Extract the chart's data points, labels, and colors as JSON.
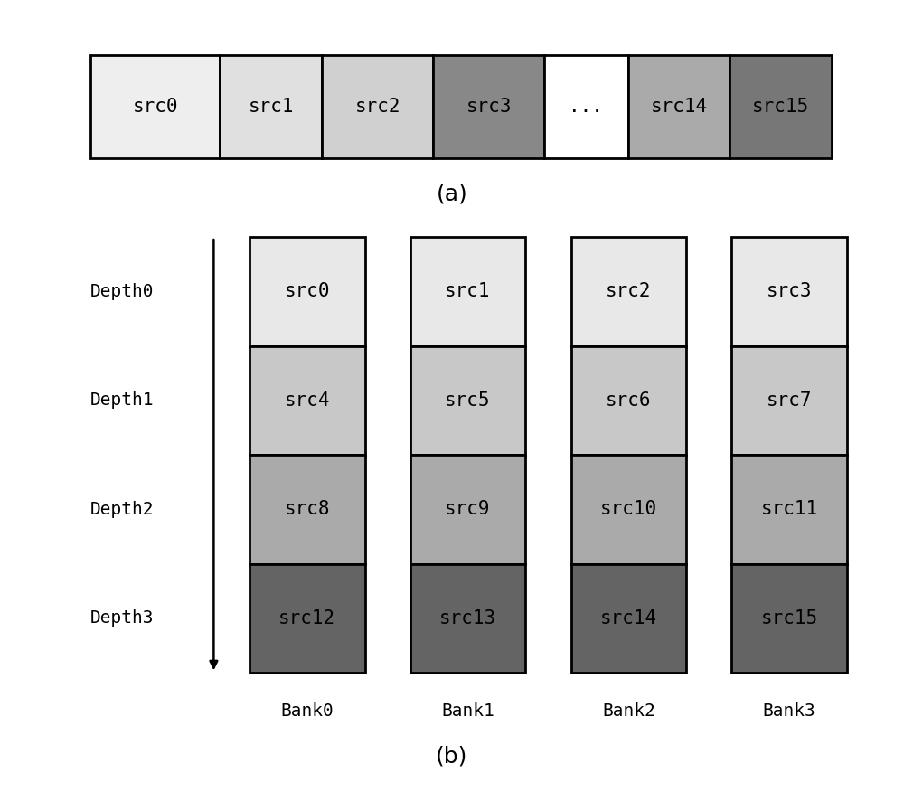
{
  "fig_width": 10.0,
  "fig_height": 8.76,
  "bg_color": "#ffffff",
  "part_a": {
    "cells": [
      "src0",
      "src1",
      "src2",
      "src3",
      "...",
      "src14",
      "src15"
    ],
    "colors": [
      "#eeeeee",
      "#e0e0e0",
      "#d0d0d0",
      "#888888",
      "#ffffff",
      "#aaaaaa",
      "#777777"
    ],
    "widths": [
      1.4,
      1.1,
      1.2,
      1.2,
      0.9,
      1.1,
      1.1
    ],
    "label": "(a)",
    "label_fontsize": 18
  },
  "part_b": {
    "banks": [
      "Bank0",
      "Bank1",
      "Bank2",
      "Bank3"
    ],
    "depths": [
      "Depth0",
      "Depth1",
      "Depth2",
      "Depth3"
    ],
    "cells": [
      [
        "src0",
        "src1",
        "src2",
        "src3"
      ],
      [
        "src4",
        "src5",
        "src6",
        "src7"
      ],
      [
        "src8",
        "src9",
        "src10",
        "src11"
      ],
      [
        "src12",
        "src13",
        "src14",
        "src15"
      ]
    ],
    "depth_colors": [
      "#e8e8e8",
      "#c8c8c8",
      "#aaaaaa",
      "#646464"
    ],
    "label": "(b)",
    "label_fontsize": 18
  },
  "cell_fontsize": 15,
  "axis_label_fontsize": 14,
  "bank_label_fontsize": 14,
  "border_lw": 2.0
}
